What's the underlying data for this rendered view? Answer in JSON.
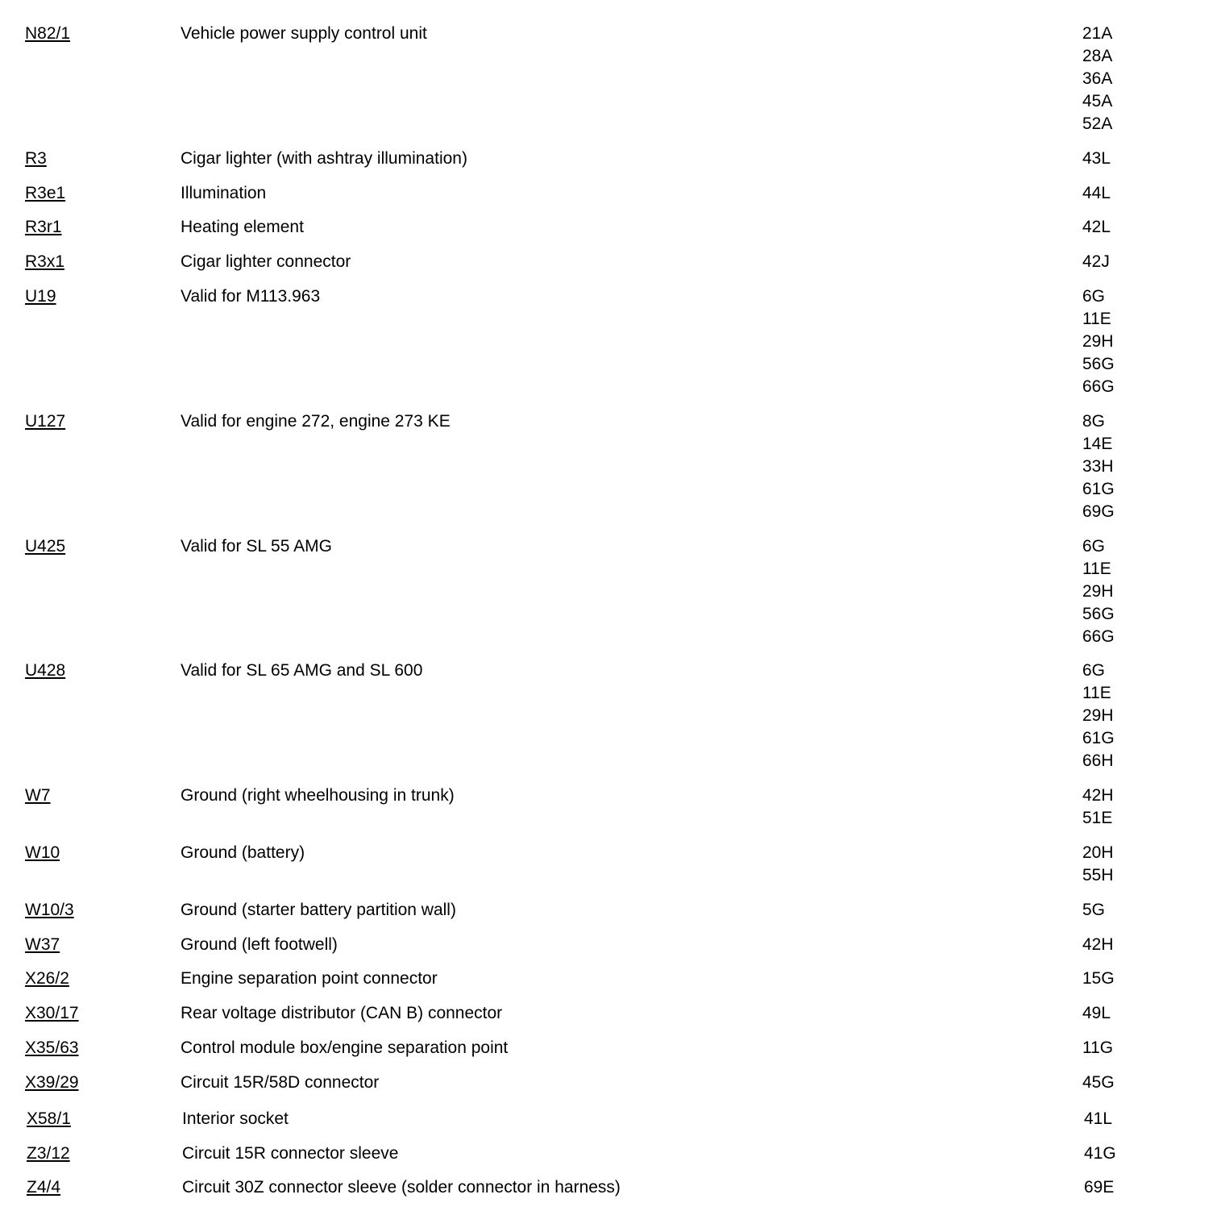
{
  "rows": [
    {
      "code": "N82/1",
      "description": "Vehicle power supply control unit",
      "refs": [
        "21A",
        "28A",
        "36A",
        "45A",
        "52A"
      ]
    },
    {
      "code": "R3",
      "description": "Cigar lighter (with ashtray illumination)",
      "refs": [
        "43L"
      ]
    },
    {
      "code": "R3e1",
      "description": "Illumination",
      "refs": [
        "44L"
      ]
    },
    {
      "code": "R3r1",
      "description": "Heating element",
      "refs": [
        "42L"
      ]
    },
    {
      "code": "R3x1",
      "description": "Cigar lighter connector",
      "refs": [
        "42J"
      ]
    },
    {
      "code": "U19",
      "description": "Valid for M113.963",
      "refs": [
        "6G",
        "11E",
        "29H",
        "56G",
        "66G"
      ]
    },
    {
      "code": "U127",
      "description": "Valid for engine 272, engine 273 KE",
      "refs": [
        "8G",
        "14E",
        "33H",
        "61G",
        "69G"
      ]
    },
    {
      "code": "U425",
      "description": "Valid for SL 55 AMG",
      "refs": [
        "6G",
        "11E",
        "29H",
        "56G",
        "66G"
      ]
    },
    {
      "code": "U428",
      "description": "Valid for SL 65 AMG and SL 600",
      "refs": [
        "6G",
        "11E",
        "29H",
        "61G",
        "66H"
      ]
    },
    {
      "code": "W7",
      "description": "Ground (right wheelhousing in trunk)",
      "refs": [
        "42H",
        "51E"
      ]
    },
    {
      "code": "W10",
      "description": "Ground (battery)",
      "refs": [
        "20H",
        "55H"
      ]
    },
    {
      "code": "W10/3",
      "description": "Ground (starter battery partition wall)",
      "refs": [
        "5G"
      ]
    },
    {
      "code": "W37",
      "description": "Ground (left footwell)",
      "refs": [
        "42H"
      ]
    },
    {
      "code": "X26/2",
      "description": "Engine separation point connector",
      "refs": [
        "15G"
      ]
    },
    {
      "code": "X30/17",
      "description": "Rear voltage distributor (CAN B) connector",
      "refs": [
        "49L"
      ]
    },
    {
      "code": "X35/63",
      "description": "Control module box/engine separation point",
      "refs": [
        "11G"
      ]
    },
    {
      "code": "X39/29",
      "description": "Circuit 15R/58D connector",
      "refs": [
        "45G"
      ]
    },
    {
      "code": "X58/1",
      "description": "Interior socket",
      "refs": [
        "41L"
      ]
    },
    {
      "code": "Z3/12",
      "description": "Circuit 15R connector sleeve",
      "refs": [
        "41G"
      ]
    },
    {
      "code": "Z4/4",
      "description": "Circuit 30Z connector sleeve (solder connector in harness)",
      "refs": [
        "69E"
      ]
    }
  ]
}
